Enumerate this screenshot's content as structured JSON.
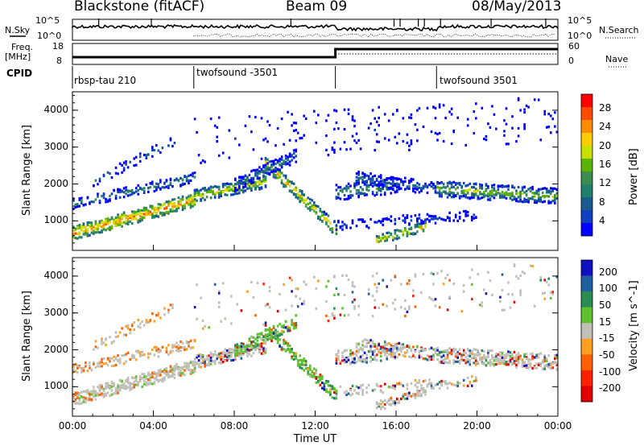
{
  "header": {
    "station": "Blackstone (fitACF)",
    "beam": "Beam 09",
    "date": "08/May/2013"
  },
  "top_panels": {
    "nsky_label": "N.Sky",
    "nsearch_label": "N.Search",
    "freq_label": "Freq.",
    "freq_unit": "[MHz]",
    "nave_label": "Nave",
    "cpid_label": "CPID",
    "left_ticks_count": [
      "10^5",
      "10^0"
    ],
    "right_ticks_count": [
      "10^5",
      "10^0"
    ],
    "left_ticks_freq": [
      "18",
      "8"
    ],
    "right_ticks_nave": [
      "60",
      "0"
    ]
  },
  "cpid_segments": [
    {
      "label": "rbsp-tau 210",
      "start_h": 0.0
    },
    {
      "label": "twofsound -3501",
      "start_h": 6.0
    },
    {
      "label": "twofsound 3501",
      "start_h": 18.0
    }
  ],
  "chart_data": [
    {
      "type": "heatmap",
      "title": "",
      "xlabel": "Time UT",
      "ylabel": "Slant Range [km]",
      "x_range_hours": [
        0,
        24
      ],
      "x_tick_labels": [
        "00:00",
        "04:00",
        "08:00",
        "12:00",
        "16:00",
        "20:00",
        "00:00"
      ],
      "ylim": [
        200,
        4500
      ],
      "y_tick_labels": [
        "1000",
        "2000",
        "3000",
        "4000"
      ],
      "colorbar": {
        "label": "Power [dB]",
        "ticks": [
          "28",
          "24",
          "20",
          "16",
          "12",
          "8",
          "4"
        ],
        "colors": [
          "#ff0000",
          "#ff4a00",
          "#ff8c00",
          "#ffcc00",
          "#c8e000",
          "#5ab400",
          "#3c8c50",
          "#20806a",
          "#1a5a8c",
          "#1040c0",
          "#0000ff"
        ]
      }
    },
    {
      "type": "heatmap",
      "title": "",
      "xlabel": "Time UT",
      "ylabel": "Slant Range [km]",
      "x_range_hours": [
        0,
        24
      ],
      "x_tick_labels": [
        "00:00",
        "04:00",
        "08:00",
        "12:00",
        "16:00",
        "20:00",
        "00:00"
      ],
      "ylim": [
        200,
        4500
      ],
      "y_tick_labels": [
        "1000",
        "2000",
        "3000",
        "4000"
      ],
      "colorbar": {
        "label": "Velocity [m s^-1]",
        "ticks": [
          "200",
          "100",
          "50",
          "15",
          "-15",
          "-50",
          "-100",
          "-200"
        ],
        "colors": [
          "#1010c0",
          "#2060a0",
          "#2a8c50",
          "#60c030",
          "#c0c0b8",
          "#ffa020",
          "#ff6000",
          "#ff2000",
          "#e00000"
        ]
      }
    }
  ]
}
